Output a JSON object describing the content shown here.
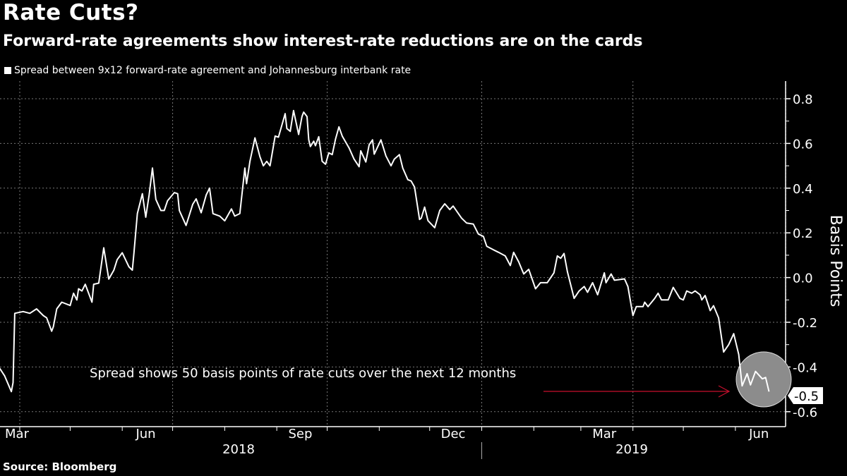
{
  "header": {
    "title": "Rate Cuts?",
    "subtitle": "Forward-rate agreements show interest-rate reductions are on the cards",
    "legend": "Spread between 9x12 forward-rate agreement and Johannesburg interbank rate"
  },
  "footer": {
    "source": "Source: Bloomberg"
  },
  "chart_data": {
    "type": "line",
    "title": "Rate Cuts?",
    "subtitle": "Forward-rate agreements show interest-rate reductions are on the cards",
    "ylabel": "Basis Points",
    "ylim": [
      -0.6,
      0.8
    ],
    "y_ticks": [
      "0.8",
      "0.6",
      "0.4",
      "0.2",
      "0.0",
      "-0.2",
      "-0.4",
      "-0.6"
    ],
    "y_tick_values": [
      0.8,
      0.6,
      0.4,
      0.2,
      0.0,
      -0.2,
      -0.4,
      -0.6
    ],
    "y_axis_side": "right",
    "x_month_labels": [
      {
        "label": "Mar",
        "date": "2018-03-15"
      },
      {
        "label": "Jun",
        "date": "2018-06-15"
      },
      {
        "label": "Sep",
        "date": "2018-09-15"
      },
      {
        "label": "Dec",
        "date": "2018-12-15"
      },
      {
        "label": "Mar",
        "date": "2019-03-15"
      },
      {
        "label": "Jun",
        "date": "2019-06-15"
      }
    ],
    "x_year_labels": [
      {
        "label": "2018"
      },
      {
        "label": "2019"
      }
    ],
    "grid": true,
    "line_color": "#ffffff",
    "last_value_label": "-0.5",
    "annotation": {
      "text": "Spread shows 50 basis points of rate cuts over the next 12 months",
      "arrow_color": "#c8102e",
      "highlight_color": "#8c8c8c"
    },
    "series": [
      {
        "name": "Spread between 9x12 forward-rate agreement and Johannesburg interbank rate",
        "x": [
          "2018-03-20",
          "2018-03-23",
          "2018-03-27",
          "2018-03-28",
          "2018-03-29",
          "2018-04-03",
          "2018-04-07",
          "2018-04-11",
          "2018-04-15",
          "2018-04-17",
          "2018-04-20",
          "2018-04-21",
          "2018-04-23",
          "2018-04-26",
          "2018-05-01",
          "2018-05-03",
          "2018-05-05",
          "2018-05-06",
          "2018-05-08",
          "2018-05-10",
          "2018-05-14",
          "2018-05-15",
          "2018-05-18",
          "2018-05-20",
          "2018-05-21",
          "2018-05-24",
          "2018-05-27",
          "2018-05-29",
          "2018-06-01",
          "2018-06-05",
          "2018-06-07",
          "2018-06-08",
          "2018-06-10",
          "2018-06-13",
          "2018-06-15",
          "2018-06-17",
          "2018-06-19",
          "2018-06-21",
          "2018-06-24",
          "2018-06-26",
          "2018-06-28",
          "2018-07-02",
          "2018-07-04",
          "2018-07-05",
          "2018-07-09",
          "2018-07-13",
          "2018-07-15",
          "2018-07-18",
          "2018-07-21",
          "2018-07-23",
          "2018-07-25",
          "2018-07-29",
          "2018-08-01",
          "2018-08-05",
          "2018-08-07",
          "2018-08-10",
          "2018-08-13",
          "2018-08-14",
          "2018-08-16",
          "2018-08-19",
          "2018-08-22",
          "2018-08-24",
          "2018-08-26",
          "2018-08-28",
          "2018-08-31",
          "2018-09-02",
          "2018-09-06",
          "2018-09-07",
          "2018-09-09",
          "2018-09-11",
          "2018-09-14",
          "2018-09-16",
          "2018-09-17",
          "2018-09-19",
          "2018-09-20",
          "2018-09-21",
          "2018-09-23",
          "2018-09-24",
          "2018-09-26",
          "2018-09-28",
          "2018-09-30",
          "2018-10-02",
          "2018-10-04",
          "2018-10-06",
          "2018-10-08",
          "2018-10-10",
          "2018-10-14",
          "2018-10-17",
          "2018-10-20",
          "2018-10-21",
          "2018-10-24",
          "2018-10-26",
          "2018-10-28",
          "2018-10-29",
          "2018-11-02",
          "2018-11-05",
          "2018-11-08",
          "2018-11-10",
          "2018-11-13",
          "2018-11-15",
          "2018-11-18",
          "2018-11-20",
          "2018-11-22",
          "2018-11-25",
          "2018-11-26",
          "2018-11-28",
          "2018-11-30",
          "2018-12-04",
          "2018-12-07",
          "2018-12-10",
          "2018-12-13",
          "2018-12-15",
          "2018-12-20",
          "2018-12-23",
          "2018-12-27",
          "2018-12-30",
          "2019-01-02",
          "2019-01-04",
          "2019-01-08",
          "2019-01-11",
          "2019-01-15",
          "2019-01-18",
          "2019-01-20",
          "2019-01-23",
          "2019-01-26",
          "2019-01-29",
          "2019-02-02",
          "2019-02-05",
          "2019-02-09",
          "2019-02-13",
          "2019-02-15",
          "2019-02-17",
          "2019-02-19",
          "2019-02-21",
          "2019-02-25",
          "2019-02-28",
          "2019-03-03",
          "2019-03-05",
          "2019-03-08",
          "2019-03-11",
          "2019-03-15",
          "2019-03-16",
          "2019-03-19",
          "2019-03-21",
          "2019-03-27",
          "2019-03-29",
          "2019-04-01",
          "2019-04-03",
          "2019-04-07",
          "2019-04-08",
          "2019-04-10",
          "2019-04-14",
          "2019-04-16",
          "2019-04-18",
          "2019-04-22",
          "2019-04-25",
          "2019-04-29",
          "2019-05-01",
          "2019-05-03",
          "2019-05-06",
          "2019-05-08",
          "2019-05-11",
          "2019-05-12",
          "2019-05-14",
          "2019-05-17",
          "2019-05-19",
          "2019-05-22",
          "2019-05-25",
          "2019-05-28",
          "2019-05-31",
          "2019-06-03",
          "2019-06-05",
          "2019-06-08",
          "2019-06-10",
          "2019-06-13",
          "2019-06-17",
          "2019-06-19",
          "2019-06-21"
        ],
        "y": [
          -0.405,
          -0.44,
          -0.51,
          -0.47,
          -0.16,
          -0.152,
          -0.16,
          -0.14,
          -0.17,
          -0.18,
          -0.24,
          -0.22,
          -0.14,
          -0.11,
          -0.125,
          -0.07,
          -0.1,
          -0.05,
          -0.06,
          -0.03,
          -0.11,
          -0.03,
          -0.025,
          0.08,
          0.133,
          -0.007,
          0.033,
          0.08,
          0.111,
          0.048,
          0.033,
          0.111,
          0.286,
          0.375,
          0.27,
          0.37,
          0.49,
          0.35,
          0.3,
          0.3,
          0.344,
          0.38,
          0.375,
          0.3,
          0.233,
          0.328,
          0.352,
          0.29,
          0.37,
          0.4,
          0.286,
          0.275,
          0.254,
          0.307,
          0.275,
          0.286,
          0.49,
          0.42,
          0.52,
          0.625,
          0.54,
          0.5,
          0.52,
          0.5,
          0.633,
          0.628,
          0.733,
          0.667,
          0.654,
          0.747,
          0.64,
          0.72,
          0.74,
          0.72,
          0.617,
          0.586,
          0.61,
          0.59,
          0.63,
          0.52,
          0.507,
          0.558,
          0.55,
          0.62,
          0.674,
          0.632,
          0.58,
          0.53,
          0.496,
          0.567,
          0.517,
          0.594,
          0.616,
          0.552,
          0.616,
          0.544,
          0.5,
          0.53,
          0.55,
          0.49,
          0.438,
          0.432,
          0.405,
          0.26,
          0.266,
          0.315,
          0.255,
          0.223,
          0.3,
          0.33,
          0.304,
          0.32,
          0.266,
          0.244,
          0.239,
          0.195,
          0.184,
          0.14,
          0.124,
          0.113,
          0.097,
          0.054,
          0.113,
          0.07,
          0.016,
          0.037,
          -0.05,
          -0.023,
          -0.023,
          0.021,
          0.097,
          0.086,
          0.108,
          0.026,
          -0.093,
          -0.06,
          -0.04,
          -0.066,
          -0.023,
          -0.077,
          0.021,
          -0.023,
          0.016,
          -0.012,
          -0.006,
          -0.04,
          -0.17,
          -0.13,
          -0.13,
          -0.11,
          -0.13,
          -0.093,
          -0.07,
          -0.1,
          -0.1,
          -0.044,
          -0.093,
          -0.1,
          -0.06,
          -0.07,
          -0.06,
          -0.077,
          -0.1,
          -0.08,
          -0.148,
          -0.126,
          -0.18,
          -0.333,
          -0.3,
          -0.251,
          -0.344,
          -0.485,
          -0.43,
          -0.48,
          -0.42,
          -0.453,
          -0.447,
          -0.51
        ]
      }
    ]
  }
}
